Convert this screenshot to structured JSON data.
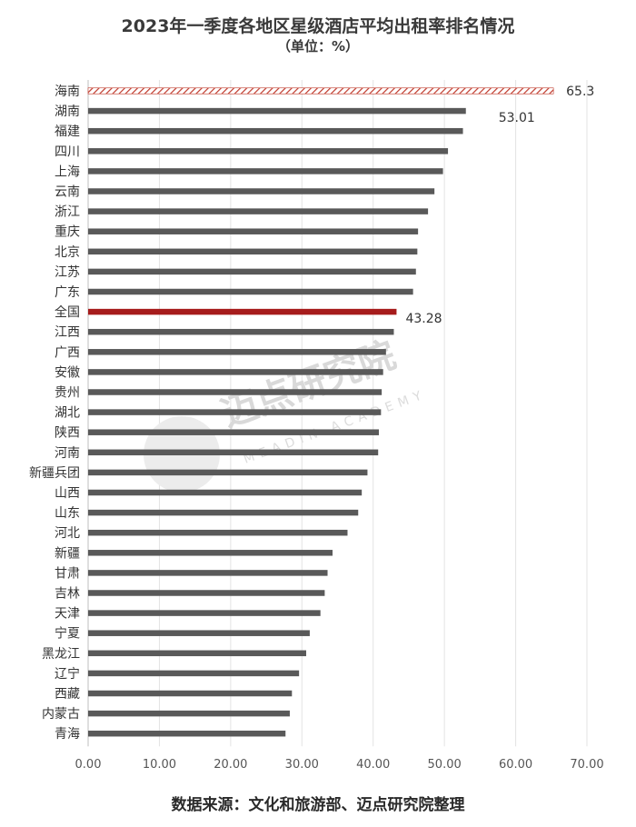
{
  "chart_data": {
    "type": "bar",
    "orientation": "horizontal",
    "title": "2023年一季度各地区星级酒店平均出租率排名情况",
    "subtitle": "（单位：%）",
    "source": "数据来源：文化和旅游部、迈点研究院整理",
    "xlim": [
      0,
      70
    ],
    "xticks": [
      "0.00",
      "10.00",
      "20.00",
      "30.00",
      "40.00",
      "50.00",
      "60.00",
      "70.00"
    ],
    "grid": "vertical",
    "legend": "none",
    "categories": [
      "海南",
      "湖南",
      "福建",
      "四川",
      "上海",
      "云南",
      "浙江",
      "重庆",
      "北京",
      "江苏",
      "广东",
      "全国",
      "江西",
      "广西",
      "安徽",
      "贵州",
      "湖北",
      "陕西",
      "河南",
      "新疆兵团",
      "山西",
      "山东",
      "河北",
      "新疆",
      "甘肃",
      "吉林",
      "天津",
      "宁夏",
      "黑龙江",
      "辽宁",
      "西藏",
      "内蒙古",
      "青海"
    ],
    "values": [
      65.3,
      53.01,
      52.6,
      50.5,
      49.8,
      48.6,
      47.7,
      46.3,
      46.2,
      46.0,
      45.6,
      43.28,
      42.9,
      41.8,
      41.4,
      41.2,
      41.1,
      40.8,
      40.7,
      39.2,
      38.4,
      37.9,
      36.4,
      34.3,
      33.6,
      33.2,
      32.6,
      31.1,
      30.6,
      29.6,
      28.6,
      28.3,
      27.7
    ],
    "data_labels": [
      {
        "category": "海南",
        "text": "65.3"
      },
      {
        "category": "湖南",
        "text": "53.01"
      },
      {
        "category": "全国",
        "text": "43.28"
      }
    ],
    "colors": {
      "default": "#595959",
      "highlight": "#a61c1c",
      "top_hatch": "#c0392b",
      "label_highlight": "#a61c1c",
      "grid": "#e3e3e3"
    },
    "watermark": {
      "main": "迈点研究院",
      "sub": "MEADIN ACADEMY"
    }
  }
}
